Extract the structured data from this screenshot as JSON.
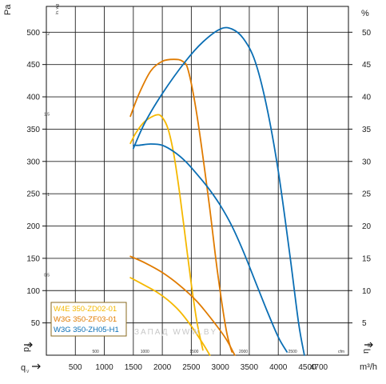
{
  "chart_data": {
    "type": "line",
    "units": {
      "left_top": "Pa",
      "left_inner": "in. wg",
      "right_top": "%",
      "bottom_inner": "cfm",
      "bottom_outer": "m³/h"
    },
    "axis_symbols": {
      "left": "p",
      "left_sub": "fs",
      "right": "η",
      "right_sub": "se",
      "bottom": "q",
      "bottom_sub": "V"
    },
    "y_pa": {
      "ticks": [
        50,
        100,
        150,
        200,
        250,
        300,
        350,
        400,
        450,
        500
      ],
      "ylim": [
        0,
        540
      ]
    },
    "y_inwg": {
      "ticks": [
        "0.5",
        "1",
        "1.5",
        "2"
      ],
      "values": [
        0.5,
        1,
        1.5,
        2
      ]
    },
    "y_eff": {
      "ticks": [
        5,
        10,
        15,
        20,
        25,
        30,
        35,
        40,
        45,
        50
      ],
      "ylim": [
        0,
        54
      ]
    },
    "x_m3h": {
      "ticks": [
        500,
        1000,
        1500,
        2000,
        2500,
        3000,
        3500,
        4000,
        4500
      ],
      "last_label": 4700,
      "xlim": [
        0,
        5210
      ]
    },
    "x_cfm": {
      "ticks": [
        500,
        1000,
        1500,
        2000,
        2500
      ]
    },
    "watermark": "ЗАПАД  WWW.BY",
    "series": [
      {
        "name": "W4E 350-ZD02-01",
        "color": "#f5b800",
        "pressure": [
          [
            1450,
            328
          ],
          [
            1550,
            345
          ],
          [
            1700,
            362
          ],
          [
            1900,
            372
          ],
          [
            2000,
            368
          ],
          [
            2100,
            350
          ],
          [
            2200,
            310
          ],
          [
            2300,
            250
          ],
          [
            2400,
            180
          ],
          [
            2500,
            110
          ],
          [
            2600,
            50
          ],
          [
            2700,
            8
          ]
        ],
        "efficiency": [
          [
            1450,
            12.0
          ],
          [
            1700,
            10.8
          ],
          [
            1900,
            9.8
          ],
          [
            2100,
            8.5
          ],
          [
            2300,
            6.8
          ],
          [
            2500,
            4.5
          ],
          [
            2700,
            1.8
          ],
          [
            2820,
            0
          ]
        ]
      },
      {
        "name": "W3G 350-ZF03-01",
        "color": "#e07b00",
        "pressure": [
          [
            1450,
            370
          ],
          [
            1600,
            405
          ],
          [
            1800,
            440
          ],
          [
            2000,
            455
          ],
          [
            2200,
            458
          ],
          [
            2350,
            455
          ],
          [
            2450,
            440
          ],
          [
            2600,
            370
          ],
          [
            2800,
            240
          ],
          [
            2950,
            130
          ],
          [
            3100,
            40
          ],
          [
            3200,
            5
          ]
        ],
        "efficiency": [
          [
            1450,
            15.3
          ],
          [
            1700,
            14.3
          ],
          [
            2000,
            12.8
          ],
          [
            2300,
            10.8
          ],
          [
            2600,
            8.3
          ],
          [
            2900,
            5.0
          ],
          [
            3100,
            2.5
          ],
          [
            3250,
            0
          ]
        ]
      },
      {
        "name": "W3G 350-ZH05-H1",
        "color": "#0a6eb4",
        "pressure": [
          [
            1500,
            325
          ],
          [
            1600,
            325
          ],
          [
            1800,
            327
          ],
          [
            2000,
            325
          ],
          [
            2200,
            315
          ],
          [
            2400,
            300
          ],
          [
            2600,
            280
          ],
          [
            2800,
            258
          ],
          [
            3000,
            232
          ],
          [
            3200,
            200
          ],
          [
            3400,
            160
          ],
          [
            3600,
            115
          ],
          [
            3800,
            70
          ],
          [
            4000,
            28
          ],
          [
            4150,
            5
          ]
        ],
        "efficiency": [
          [
            1500,
            32.0
          ],
          [
            1700,
            36.0
          ],
          [
            2000,
            40.5
          ],
          [
            2400,
            45.5
          ],
          [
            2700,
            48.5
          ],
          [
            3000,
            50.5
          ],
          [
            3200,
            50.5
          ],
          [
            3400,
            49.0
          ],
          [
            3600,
            45.5
          ],
          [
            3800,
            38.5
          ],
          [
            4000,
            28.5
          ],
          [
            4200,
            15.5
          ],
          [
            4350,
            5.0
          ],
          [
            4450,
            0
          ]
        ]
      }
    ]
  }
}
